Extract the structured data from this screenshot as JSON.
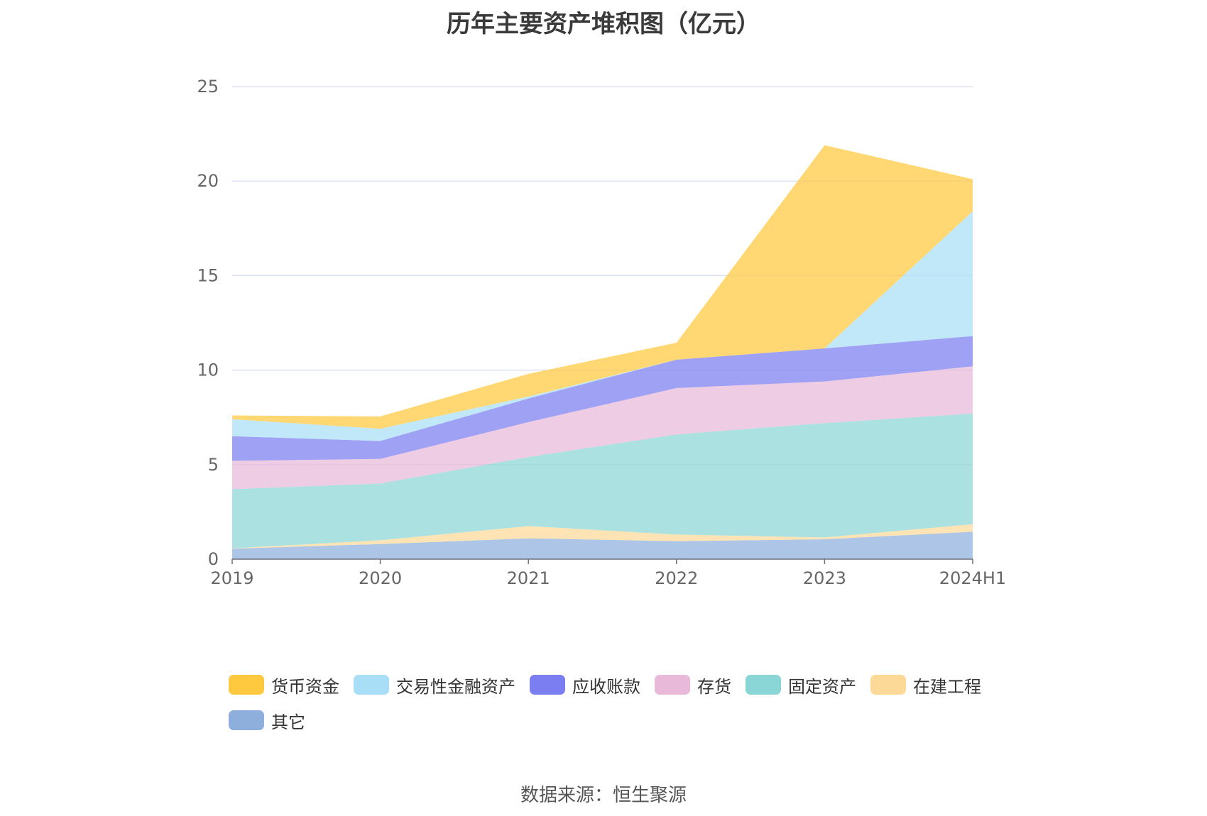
{
  "chart_data": {
    "type": "area",
    "stacked": true,
    "title": "历年主要资产堆积图（亿元）",
    "categories": [
      "2019",
      "2020",
      "2021",
      "2022",
      "2023",
      "2024H1"
    ],
    "ylim": [
      0,
      25
    ],
    "yticks": [
      "0",
      "5",
      "10",
      "15",
      "20",
      "25"
    ],
    "grid": true,
    "legend_position": "bottom",
    "series": [
      {
        "name": "其它",
        "color": "#8eaedc",
        "values": [
          0.55,
          0.8,
          1.1,
          0.95,
          1.05,
          1.45
        ]
      },
      {
        "name": "在建工程",
        "color": "#fdd997",
        "values": [
          0.02,
          0.2,
          0.65,
          0.35,
          0.1,
          0.4
        ]
      },
      {
        "name": "固定资产",
        "color": "#8ad6d6",
        "values": [
          3.13,
          3.0,
          3.65,
          5.3,
          6.05,
          5.85
        ]
      },
      {
        "name": "存货",
        "color": "#e8b9d9",
        "values": [
          1.5,
          1.3,
          1.85,
          2.45,
          2.2,
          2.5
        ]
      },
      {
        "name": "应收账款",
        "color": "#7a7ef0",
        "values": [
          1.3,
          0.95,
          1.25,
          1.5,
          1.75,
          1.6
        ]
      },
      {
        "name": "交易性金融资产",
        "color": "#a8dff7",
        "values": [
          0.9,
          0.65,
          0.1,
          0.0,
          0.0,
          6.6
        ]
      },
      {
        "name": "货币资金",
        "color": "#ffc93f",
        "values": [
          0.2,
          0.65,
          1.2,
          0.9,
          10.75,
          1.7
        ]
      }
    ],
    "legend_order": [
      "货币资金",
      "交易性金融资产",
      "应收账款",
      "存货",
      "固定资产",
      "在建工程",
      "其它"
    ],
    "source": "数据来源：恒生聚源"
  }
}
